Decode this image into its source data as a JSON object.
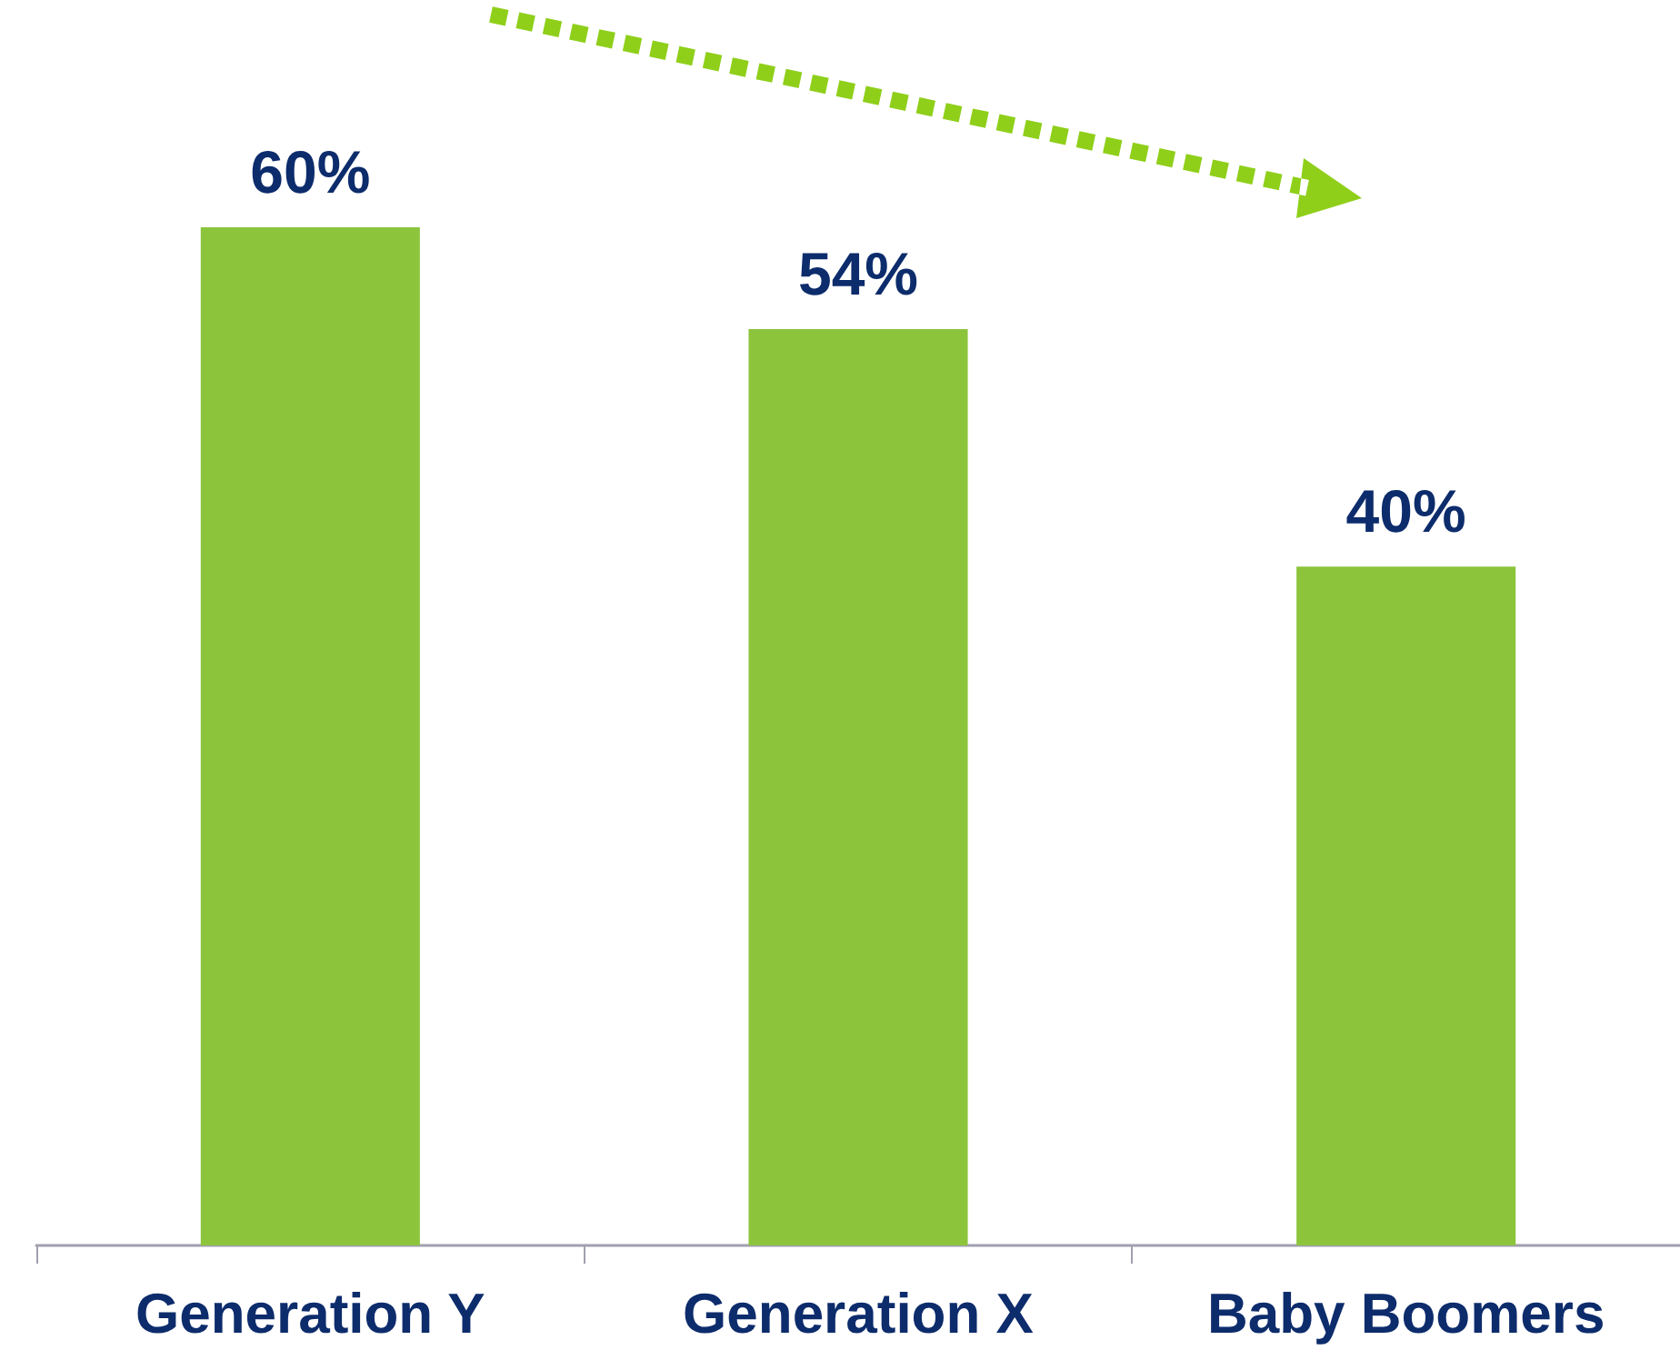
{
  "chart_data": {
    "type": "bar",
    "categories": [
      "Generation Y",
      "Generation X",
      "Baby Boomers"
    ],
    "values": [
      60,
      54,
      40
    ],
    "color": "#8cc43c",
    "value_labels": [
      "60%",
      "54%",
      "40%"
    ]
  }
}
